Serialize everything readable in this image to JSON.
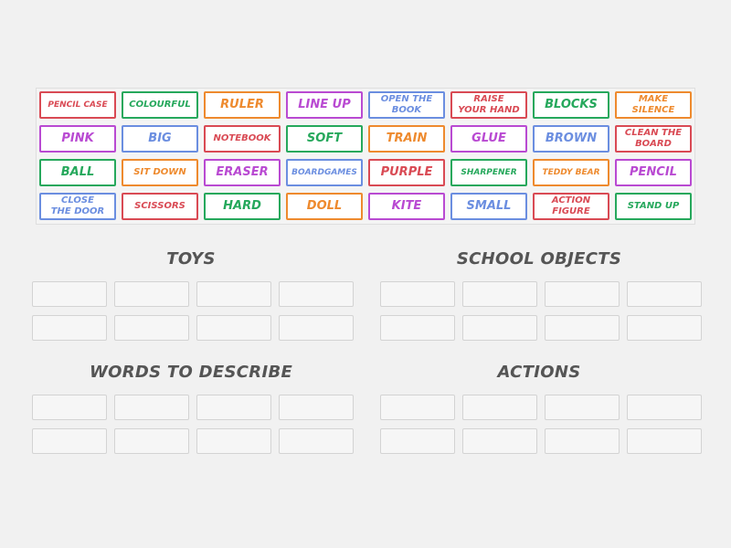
{
  "tiles": [
    {
      "text": "PENCIL CASE",
      "color": "#d94a54",
      "size": "xs"
    },
    {
      "text": "COLOURFUL",
      "color": "#26a85c",
      "size": "sm"
    },
    {
      "text": "RULER",
      "color": "#ee8a2e",
      "size": ""
    },
    {
      "text": "LINE UP",
      "color": "#b94ad2",
      "size": ""
    },
    {
      "text": "OPEN THE\nBOOK",
      "color": "#6b8ee0",
      "size": "two"
    },
    {
      "text": "RAISE\nYOUR HAND",
      "color": "#d94a54",
      "size": "two"
    },
    {
      "text": "BLOCKS",
      "color": "#26a85c",
      "size": ""
    },
    {
      "text": "MAKE\nSILENCE",
      "color": "#ee8a2e",
      "size": "two"
    },
    {
      "text": "PINK",
      "color": "#b94ad2",
      "size": ""
    },
    {
      "text": "BIG",
      "color": "#6b8ee0",
      "size": ""
    },
    {
      "text": "NOTEBOOK",
      "color": "#d94a54",
      "size": "sm"
    },
    {
      "text": "SOFT",
      "color": "#26a85c",
      "size": ""
    },
    {
      "text": "TRAIN",
      "color": "#ee8a2e",
      "size": ""
    },
    {
      "text": "GLUE",
      "color": "#b94ad2",
      "size": ""
    },
    {
      "text": "BROWN",
      "color": "#6b8ee0",
      "size": ""
    },
    {
      "text": "CLEAN THE\nBOARD",
      "color": "#d94a54",
      "size": "two"
    },
    {
      "text": "BALL",
      "color": "#26a85c",
      "size": ""
    },
    {
      "text": "SIT DOWN",
      "color": "#ee8a2e",
      "size": "sm"
    },
    {
      "text": "ERASER",
      "color": "#b94ad2",
      "size": ""
    },
    {
      "text": "BOARDGAMES",
      "color": "#6b8ee0",
      "size": "xs"
    },
    {
      "text": "PURPLE",
      "color": "#d94a54",
      "size": ""
    },
    {
      "text": "SHARPENER",
      "color": "#26a85c",
      "size": "xs"
    },
    {
      "text": "TEDDY BEAR",
      "color": "#ee8a2e",
      "size": "xs"
    },
    {
      "text": "PENCIL",
      "color": "#b94ad2",
      "size": ""
    },
    {
      "text": "CLOSE\nTHE DOOR",
      "color": "#6b8ee0",
      "size": "two"
    },
    {
      "text": "SCISSORS",
      "color": "#d94a54",
      "size": "sm"
    },
    {
      "text": "HARD",
      "color": "#26a85c",
      "size": ""
    },
    {
      "text": "DOLL",
      "color": "#ee8a2e",
      "size": ""
    },
    {
      "text": "KITE",
      "color": "#b94ad2",
      "size": ""
    },
    {
      "text": "SMALL",
      "color": "#6b8ee0",
      "size": ""
    },
    {
      "text": "ACTION\nFIGURE",
      "color": "#d94a54",
      "size": "two"
    },
    {
      "text": "STAND UP",
      "color": "#26a85c",
      "size": "sm"
    }
  ],
  "categories": [
    {
      "title": "TOYS"
    },
    {
      "title": "SCHOOL OBJECTS"
    },
    {
      "title": "WORDS TO DESCRIBE"
    },
    {
      "title": "ACTIONS"
    }
  ],
  "slots_per_category": 8
}
